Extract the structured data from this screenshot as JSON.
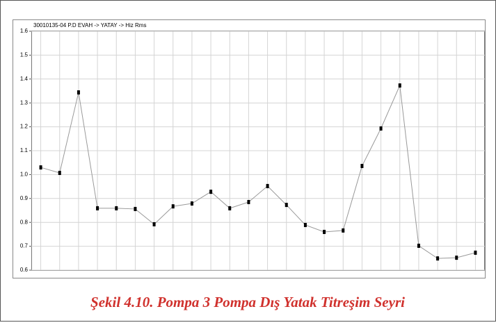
{
  "chart_data": {
    "type": "line",
    "title": "30010135-04 P.D EVAH -> YATAY -> Hiz Rms",
    "categories": [
      null,
      null,
      null,
      null,
      null,
      null,
      null,
      null,
      null,
      null,
      null,
      null,
      null,
      null,
      null,
      null,
      null,
      null,
      null,
      null,
      null,
      null,
      null,
      null
    ],
    "values": [
      1.03,
      1.007,
      1.344,
      0.859,
      0.859,
      0.856,
      0.792,
      0.867,
      0.879,
      0.928,
      0.859,
      0.885,
      0.952,
      0.873,
      0.789,
      0.76,
      0.766,
      1.036,
      1.193,
      1.373,
      0.702,
      0.649,
      0.652,
      0.673
    ],
    "color": "#999999",
    "marker_color": "#000000",
    "ylim": [
      0.6,
      1.6
    ],
    "yticks": [
      0.6,
      0.7,
      0.8,
      0.9,
      {
        "value": 1,
        "label": "1.0"
      },
      1.1,
      1.2,
      1.3,
      1.4,
      1.5,
      1.6
    ],
    "grid": true
  },
  "caption": "Şekil 4.10. Pompa 3 Pompa Dış Yatak Titreşim Seyri"
}
